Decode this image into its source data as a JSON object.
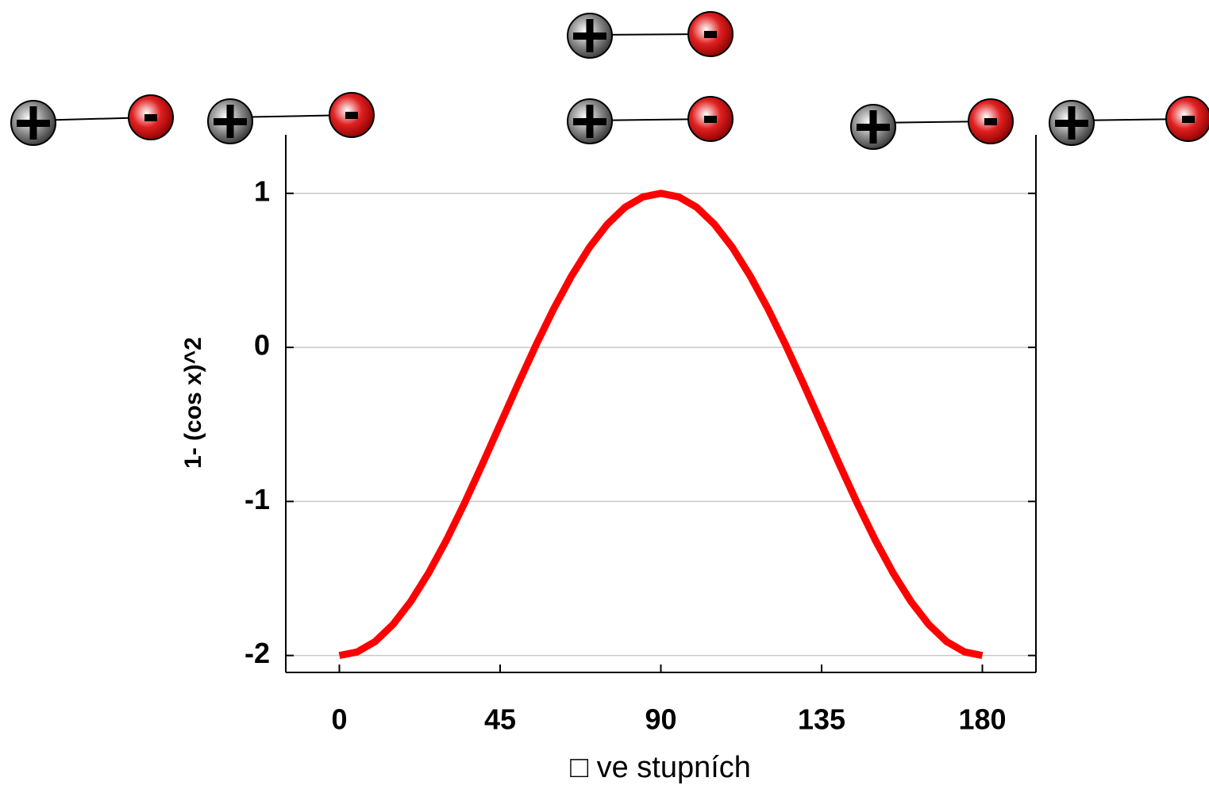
{
  "chart_data": {
    "type": "line",
    "xlabel": "□ ve stupních",
    "ylabel": "1- (cos x)^2",
    "x": [
      0,
      5,
      10,
      15,
      20,
      25,
      30,
      35,
      40,
      45,
      50,
      55,
      60,
      65,
      70,
      75,
      80,
      85,
      90,
      95,
      100,
      105,
      110,
      115,
      120,
      125,
      130,
      135,
      140,
      145,
      150,
      155,
      160,
      165,
      170,
      175,
      180
    ],
    "values": [
      -2,
      -1.977,
      -1.91,
      -1.799,
      -1.649,
      -1.464,
      -1.25,
      -1.013,
      -0.76,
      -0.5,
      -0.24,
      0.013,
      0.25,
      0.464,
      0.649,
      0.799,
      0.91,
      0.977,
      1,
      0.977,
      0.91,
      0.799,
      0.649,
      0.464,
      0.25,
      0.013,
      -0.24,
      -0.5,
      -0.76,
      -1.013,
      -1.25,
      -1.464,
      -1.649,
      -1.799,
      -1.91,
      -1.977,
      -2
    ],
    "color": "#ff0000",
    "xlim": [
      -15,
      195
    ],
    "xticks": [
      0,
      45,
      90,
      135,
      180
    ],
    "ylim": [
      -2.11,
      1.38
    ],
    "yticks": [
      -2,
      -1,
      0,
      1
    ],
    "grid": true
  }
}
